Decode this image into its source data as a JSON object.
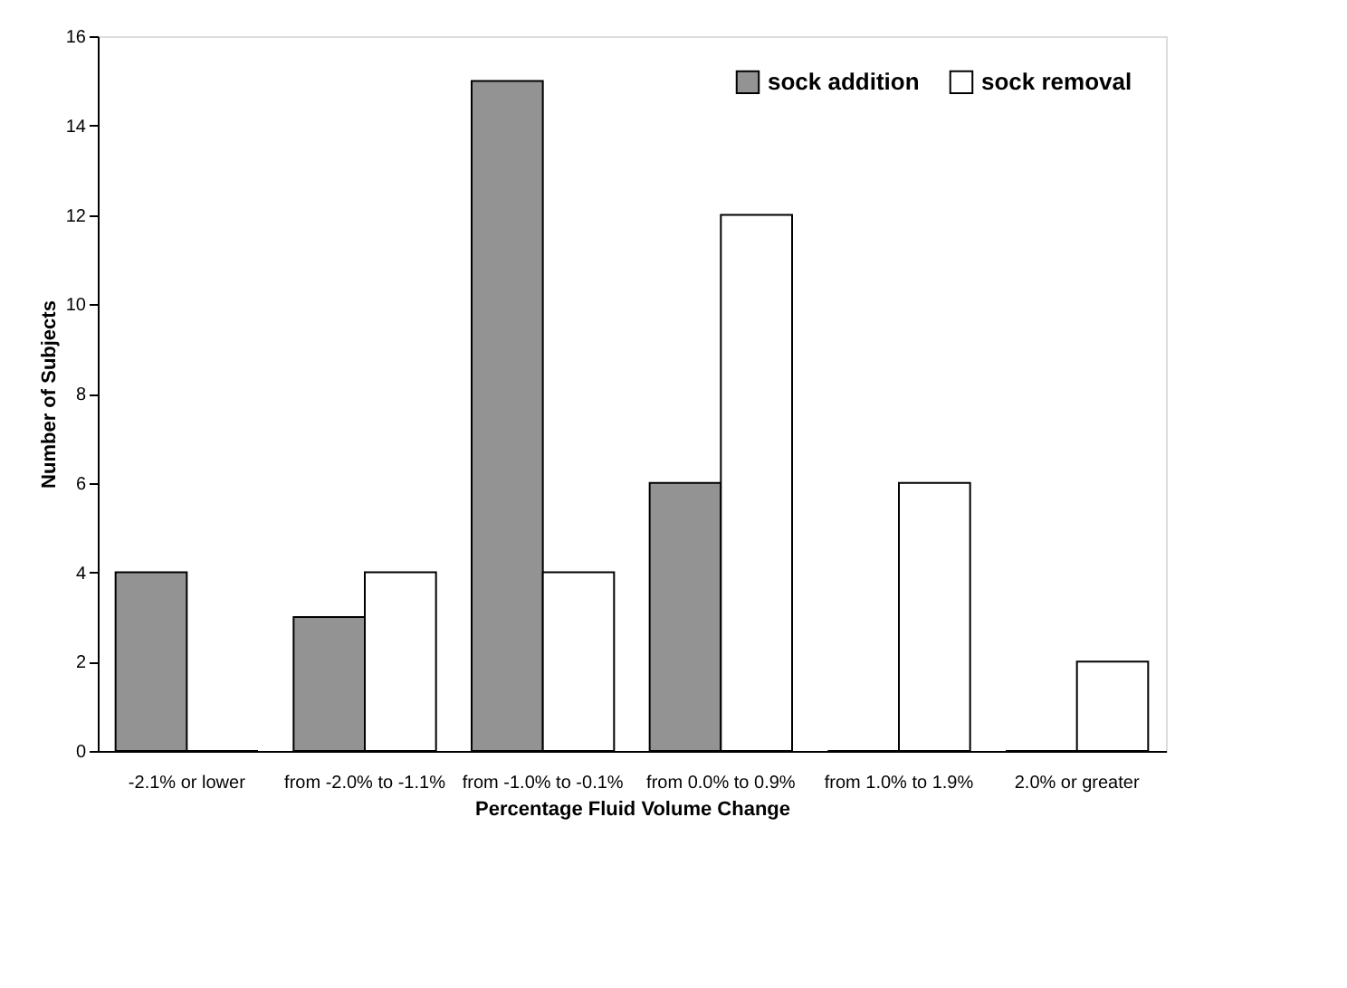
{
  "chart_data": {
    "type": "bar",
    "xlabel": "Percentage Fluid Volume Change",
    "ylabel": "Number of Subjects",
    "categories": [
      "-2.1% or\nlower",
      "from -2.0%\nto -1.1%",
      "from -1.0%\nto -0.1%",
      "from 0.0%\nto 0.9%",
      "from 1.0%\nto 1.9%",
      "2.0% or\ngreater"
    ],
    "series": [
      {
        "name": "sock addition",
        "color": "#939393",
        "values": [
          4,
          3,
          15,
          6,
          0,
          0
        ]
      },
      {
        "name": "sock removal",
        "color": "#ffffff",
        "values": [
          0,
          4,
          4,
          12,
          6,
          2
        ]
      }
    ],
    "ylim": [
      0,
      16
    ],
    "yticks": [
      0,
      2,
      4,
      6,
      8,
      10,
      12,
      14,
      16
    ],
    "grid": false,
    "legend": "top right"
  }
}
